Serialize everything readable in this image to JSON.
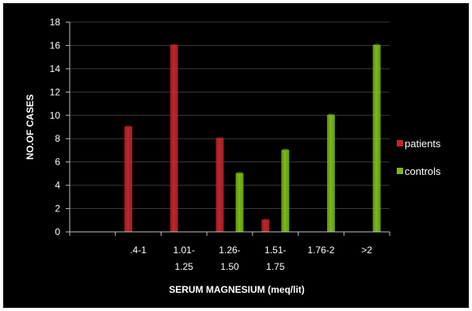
{
  "chart_data": {
    "type": "bar",
    "categories": [
      [
        "",
        ""
      ],
      [
        ".4-1",
        ""
      ],
      [
        "1.01-",
        "1.25"
      ],
      [
        "1.26-",
        "1.50"
      ],
      [
        "1.51-",
        "1.75"
      ],
      [
        "1.76-2",
        ""
      ],
      [
        ">2",
        ""
      ]
    ],
    "series": [
      {
        "name": "patients",
        "values": [
          0,
          9,
          16,
          8,
          1,
          0,
          0
        ],
        "color": "#c0262c"
      },
      {
        "name": "controls",
        "values": [
          0,
          0,
          0,
          5,
          7,
          10,
          16
        ],
        "color": "#7cba17"
      }
    ],
    "ylim": [
      0,
      18
    ],
    "yticks": [
      0,
      2,
      4,
      6,
      8,
      10,
      12,
      14,
      16,
      18
    ],
    "ylabel": "NO.OF CASES",
    "xlabel": "SERUM  MAGNESIUM  (meq/lit)",
    "grid": true,
    "legend": "right",
    "background": "#000000",
    "gridColor": "#3a3a3a"
  }
}
